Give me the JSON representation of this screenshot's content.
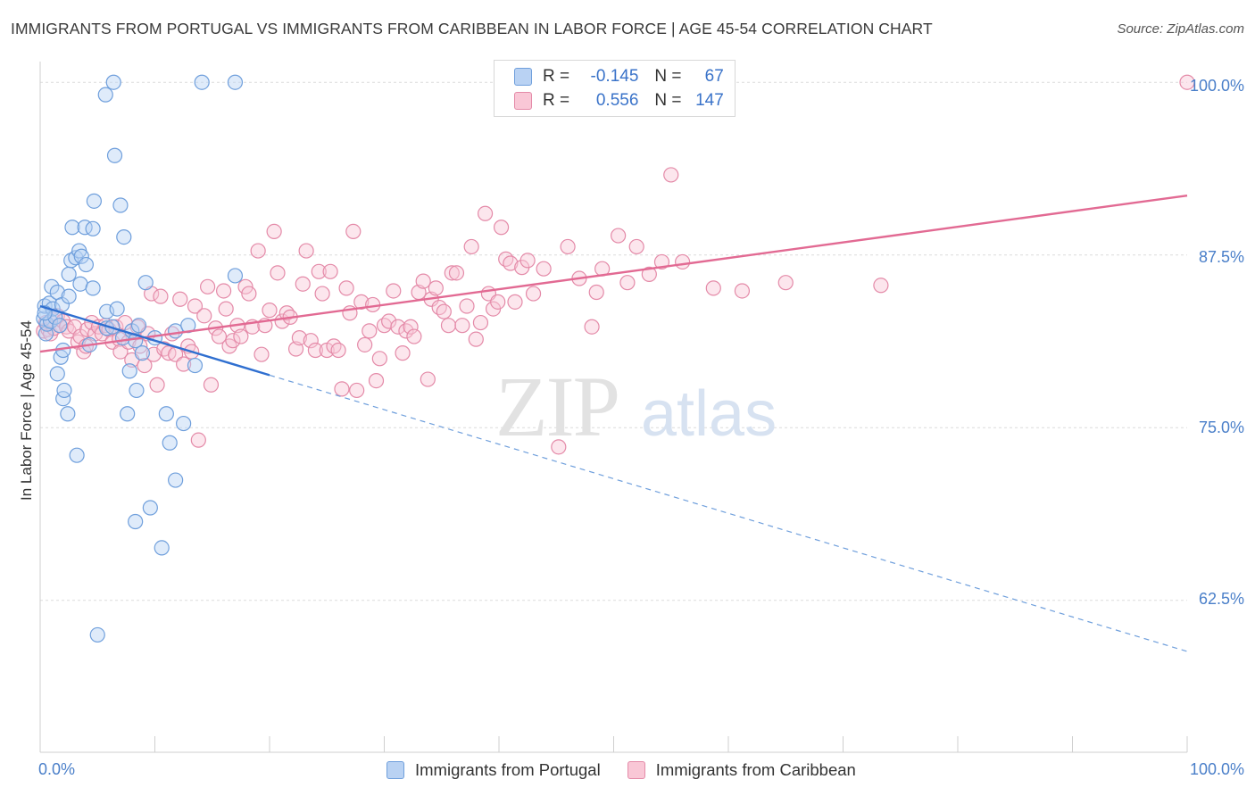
{
  "title": "IMMIGRANTS FROM PORTUGAL VS IMMIGRANTS FROM CARIBBEAN IN LABOR FORCE | AGE 45-54 CORRELATION CHART",
  "source": "Source: ZipAtlas.com",
  "watermark": {
    "zip": "ZIP",
    "atlas": "atlas"
  },
  "legend": {
    "rows": [
      {
        "r_label": "R =",
        "r_value": "-0.145",
        "n_label": "N =",
        "n_value": "67"
      },
      {
        "r_label": "R =",
        "r_value": "0.556",
        "n_label": "N =",
        "n_value": "147"
      }
    ]
  },
  "colors": {
    "portugal": "#6f9fdc",
    "portugal_fill": "#b9d2f3",
    "caribbean": "#e48aa8",
    "caribbean_fill": "#f9c7d6",
    "axis_text": "#4a7fc9",
    "pink_line": "#e26a93",
    "blue_line": "#2f6fd0"
  },
  "chart_data": {
    "type": "scatter",
    "title": "IMMIGRANTS FROM PORTUGAL VS IMMIGRANTS FROM CARIBBEAN IN LABOR FORCE | AGE 45-54 CORRELATION CHART",
    "xlabel": "",
    "ylabel": "In Labor Force | Age 45-54",
    "xlim": [
      0,
      100
    ],
    "ylim": [
      51.5,
      101.5
    ],
    "x_tick_labels": [
      "0.0%",
      "100.0%"
    ],
    "y_ticks": [
      62.5,
      75.0,
      87.5,
      100.0
    ],
    "y_tick_labels": [
      "62.5%",
      "75.0%",
      "87.5%",
      "100.0%"
    ],
    "grid": "horizontal dashed",
    "legend_position": "top-center",
    "series": [
      {
        "name": "Immigrants from Portugal",
        "color": "#6f9fdc",
        "r": -0.145,
        "n": 67,
        "trend": {
          "x0": 0,
          "y0": 83.8,
          "x1": 100,
          "y1": 58.8,
          "solid_until_x": 20
        },
        "points": [
          [
            0.3,
            82.9
          ],
          [
            0.4,
            83.8
          ],
          [
            0.5,
            81.8
          ],
          [
            0.6,
            82.5
          ],
          [
            0.8,
            84.0
          ],
          [
            0.9,
            82.7
          ],
          [
            1.0,
            85.2
          ],
          [
            1.1,
            83.6
          ],
          [
            1.3,
            83.0
          ],
          [
            1.5,
            84.8
          ],
          [
            1.5,
            78.9
          ],
          [
            1.7,
            82.4
          ],
          [
            1.8,
            80.1
          ],
          [
            1.9,
            83.9
          ],
          [
            2.0,
            80.6
          ],
          [
            2.0,
            77.1
          ],
          [
            2.1,
            77.7
          ],
          [
            2.4,
            76.0
          ],
          [
            2.5,
            84.5
          ],
          [
            2.5,
            86.1
          ],
          [
            2.7,
            87.1
          ],
          [
            2.8,
            89.5
          ],
          [
            3.1,
            87.3
          ],
          [
            3.2,
            73.0
          ],
          [
            3.4,
            87.8
          ],
          [
            3.5,
            85.4
          ],
          [
            3.6,
            87.4
          ],
          [
            3.9,
            89.5
          ],
          [
            4.0,
            86.8
          ],
          [
            4.3,
            81.0
          ],
          [
            4.6,
            89.4
          ],
          [
            4.6,
            85.1
          ],
          [
            4.7,
            91.4
          ],
          [
            5.0,
            60.0
          ],
          [
            5.7,
            99.1
          ],
          [
            5.8,
            82.2
          ],
          [
            5.8,
            83.4
          ],
          [
            6.3,
            82.3
          ],
          [
            6.5,
            94.7
          ],
          [
            6.4,
            100.0
          ],
          [
            6.7,
            83.6
          ],
          [
            7.0,
            91.1
          ],
          [
            7.2,
            81.5
          ],
          [
            7.3,
            88.8
          ],
          [
            7.6,
            76.0
          ],
          [
            7.8,
            79.1
          ],
          [
            8.0,
            82.0
          ],
          [
            8.3,
            68.2
          ],
          [
            8.3,
            81.3
          ],
          [
            8.4,
            77.7
          ],
          [
            8.6,
            82.4
          ],
          [
            8.9,
            80.4
          ],
          [
            9.2,
            85.5
          ],
          [
            9.6,
            69.2
          ],
          [
            10.0,
            81.5
          ],
          [
            10.6,
            66.3
          ],
          [
            11.0,
            76.0
          ],
          [
            11.3,
            73.9
          ],
          [
            11.8,
            82.0
          ],
          [
            11.8,
            71.2
          ],
          [
            12.5,
            75.3
          ],
          [
            12.9,
            82.4
          ],
          [
            13.5,
            79.5
          ],
          [
            14.1,
            100.0
          ],
          [
            17.0,
            86.0
          ],
          [
            17.0,
            100.0
          ],
          [
            0.4,
            83.3
          ]
        ]
      },
      {
        "name": "Immigrants from Caribbean",
        "color": "#e48aa8",
        "r": 0.556,
        "n": 147,
        "trend": {
          "x0": 0,
          "y0": 80.5,
          "x1": 100,
          "y1": 91.8
        },
        "points": [
          [
            0.3,
            82.0
          ],
          [
            0.5,
            82.6
          ],
          [
            0.7,
            82.1
          ],
          [
            0.9,
            81.8
          ],
          [
            1.1,
            82.8
          ],
          [
            1.2,
            82.2
          ],
          [
            1.5,
            83.1
          ],
          [
            1.7,
            82.4
          ],
          [
            2.0,
            82.7
          ],
          [
            2.3,
            82.3
          ],
          [
            2.5,
            82.0
          ],
          [
            3.0,
            82.3
          ],
          [
            3.3,
            81.2
          ],
          [
            3.5,
            81.6
          ],
          [
            3.8,
            80.5
          ],
          [
            4.0,
            80.9
          ],
          [
            4.1,
            82.1
          ],
          [
            4.5,
            82.6
          ],
          [
            4.8,
            81.8
          ],
          [
            5.1,
            82.3
          ],
          [
            5.4,
            81.8
          ],
          [
            5.7,
            82.4
          ],
          [
            6.0,
            82.1
          ],
          [
            6.3,
            81.2
          ],
          [
            6.6,
            82.3
          ],
          [
            6.9,
            81.4
          ],
          [
            7.0,
            80.5
          ],
          [
            7.4,
            82.6
          ],
          [
            7.7,
            81.2
          ],
          [
            8.0,
            79.9
          ],
          [
            8.5,
            82.3
          ],
          [
            8.7,
            80.9
          ],
          [
            9.1,
            79.5
          ],
          [
            9.4,
            81.8
          ],
          [
            9.7,
            84.7
          ],
          [
            9.9,
            80.3
          ],
          [
            10.2,
            78.1
          ],
          [
            10.5,
            84.5
          ],
          [
            10.8,
            80.7
          ],
          [
            11.2,
            80.4
          ],
          [
            11.5,
            81.8
          ],
          [
            11.8,
            80.3
          ],
          [
            12.2,
            84.3
          ],
          [
            12.5,
            79.6
          ],
          [
            12.9,
            80.9
          ],
          [
            13.2,
            80.5
          ],
          [
            13.5,
            83.8
          ],
          [
            13.8,
            74.1
          ],
          [
            14.3,
            83.1
          ],
          [
            14.6,
            85.2
          ],
          [
            14.9,
            78.1
          ],
          [
            15.3,
            82.2
          ],
          [
            15.6,
            81.6
          ],
          [
            16.0,
            84.9
          ],
          [
            16.2,
            83.6
          ],
          [
            16.5,
            80.9
          ],
          [
            16.8,
            81.3
          ],
          [
            17.2,
            82.4
          ],
          [
            17.5,
            81.6
          ],
          [
            17.9,
            85.2
          ],
          [
            18.2,
            84.7
          ],
          [
            18.5,
            82.3
          ],
          [
            19.0,
            87.8
          ],
          [
            19.3,
            80.3
          ],
          [
            19.6,
            82.4
          ],
          [
            20.0,
            83.5
          ],
          [
            20.4,
            89.2
          ],
          [
            20.7,
            86.2
          ],
          [
            21.1,
            82.7
          ],
          [
            21.5,
            83.3
          ],
          [
            21.8,
            83.0
          ],
          [
            22.3,
            80.7
          ],
          [
            22.6,
            81.5
          ],
          [
            22.9,
            85.4
          ],
          [
            23.2,
            87.8
          ],
          [
            23.6,
            81.3
          ],
          [
            24.0,
            80.6
          ],
          [
            24.3,
            86.3
          ],
          [
            24.6,
            84.7
          ],
          [
            25.0,
            80.6
          ],
          [
            25.3,
            86.3
          ],
          [
            25.6,
            80.9
          ],
          [
            26.0,
            80.6
          ],
          [
            26.3,
            77.8
          ],
          [
            26.7,
            85.1
          ],
          [
            27.0,
            83.3
          ],
          [
            27.3,
            89.2
          ],
          [
            27.6,
            77.7
          ],
          [
            28.0,
            84.1
          ],
          [
            28.3,
            81.0
          ],
          [
            28.7,
            82.0
          ],
          [
            29.0,
            83.9
          ],
          [
            29.3,
            78.4
          ],
          [
            29.6,
            80.0
          ],
          [
            30.0,
            82.4
          ],
          [
            30.4,
            82.7
          ],
          [
            30.8,
            84.9
          ],
          [
            31.2,
            82.3
          ],
          [
            31.6,
            80.4
          ],
          [
            31.9,
            82.0
          ],
          [
            32.3,
            82.3
          ],
          [
            32.6,
            81.6
          ],
          [
            33.0,
            84.8
          ],
          [
            33.4,
            85.6
          ],
          [
            33.8,
            78.5
          ],
          [
            34.1,
            84.3
          ],
          [
            34.5,
            85.1
          ],
          [
            34.8,
            83.7
          ],
          [
            35.2,
            83.4
          ],
          [
            35.6,
            82.4
          ],
          [
            35.9,
            86.2
          ],
          [
            36.3,
            86.2
          ],
          [
            36.8,
            82.4
          ],
          [
            37.2,
            83.8
          ],
          [
            37.6,
            88.1
          ],
          [
            38.0,
            81.4
          ],
          [
            38.4,
            82.6
          ],
          [
            38.8,
            90.5
          ],
          [
            39.1,
            84.7
          ],
          [
            39.5,
            83.6
          ],
          [
            39.9,
            84.1
          ],
          [
            40.2,
            89.5
          ],
          [
            40.6,
            87.2
          ],
          [
            41.0,
            86.9
          ],
          [
            41.4,
            84.1
          ],
          [
            42.0,
            86.6
          ],
          [
            42.5,
            87.1
          ],
          [
            43.0,
            84.7
          ],
          [
            43.9,
            86.5
          ],
          [
            45.2,
            73.6
          ],
          [
            46.0,
            88.1
          ],
          [
            47.0,
            85.8
          ],
          [
            48.1,
            82.3
          ],
          [
            48.5,
            84.8
          ],
          [
            49.0,
            86.5
          ],
          [
            50.4,
            88.9
          ],
          [
            51.2,
            85.5
          ],
          [
            52.0,
            88.1
          ],
          [
            53.1,
            86.1
          ],
          [
            54.2,
            87.0
          ],
          [
            55.0,
            93.3
          ],
          [
            56.0,
            87.0
          ],
          [
            58.7,
            85.1
          ],
          [
            61.2,
            84.9
          ],
          [
            65.0,
            85.5
          ],
          [
            73.3,
            85.3
          ],
          [
            100.0,
            100.0
          ]
        ]
      }
    ]
  },
  "bottom_legend": {
    "items": [
      {
        "label": "Immigrants from Portugal"
      },
      {
        "label": "Immigrants from Caribbean"
      }
    ]
  }
}
